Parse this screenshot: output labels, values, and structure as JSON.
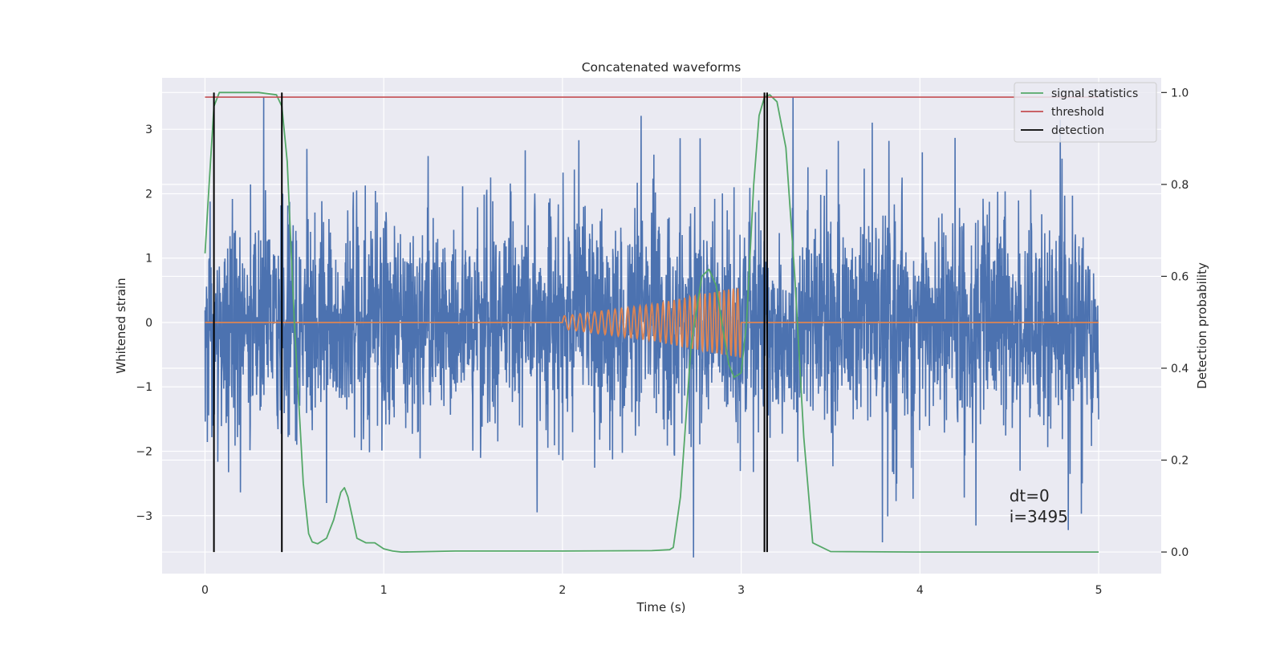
{
  "chart_data": {
    "type": "line",
    "title": "Concatenated waveforms",
    "xlabel": "Time (s)",
    "ylabel_left": "Whitened strain",
    "ylabel_right": "Detection probability",
    "xlim": [
      -0.24,
      5.35
    ],
    "ylim_left": [
      -3.9,
      3.8
    ],
    "ylim_right": [
      -0.047,
      1.032
    ],
    "xticks": [
      0,
      1,
      2,
      3,
      4,
      5
    ],
    "xtick_labels": [
      "0",
      "1",
      "2",
      "3",
      "4",
      "5"
    ],
    "yticks_left": [
      -3,
      -2,
      -1,
      0,
      1,
      2,
      3
    ],
    "ytick_labels_left": [
      "−3",
      "−2",
      "−1",
      "0",
      "1",
      "2",
      "3"
    ],
    "yticks_right": [
      0.0,
      0.2,
      0.4,
      0.6,
      0.8,
      1.0
    ],
    "ytick_labels_right": [
      "0.0",
      "0.2",
      "0.4",
      "0.6",
      "0.8",
      "1.0"
    ],
    "grid": true,
    "legend_position": "upper right",
    "colors": {
      "background": "#eaeaf2",
      "grid": "#ffffff",
      "strain": "#4c72b0",
      "template": "#dd8452",
      "signal_statistics": "#55a868",
      "threshold": "#c44e52",
      "detection": "#000000"
    },
    "series": [
      {
        "name": "strain",
        "axis": "left",
        "description": "noisy whitened strain over 0-5 s",
        "x_range": [
          0,
          5
        ],
        "y_envelope": [
          -3.65,
          3.5
        ]
      },
      {
        "name": "template",
        "axis": "left",
        "description": "chirp injection between 2 s and 3 s",
        "x": [
          0,
          2,
          2.5,
          2.8,
          3,
          3.01,
          5
        ],
        "amplitude": [
          0,
          0.1,
          0.28,
          0.45,
          0.55,
          0,
          0
        ]
      },
      {
        "name": "signal statistics",
        "axis": "right",
        "x": [
          0,
          0.02,
          0.05,
          0.08,
          0.12,
          0.2,
          0.3,
          0.4,
          0.43,
          0.46,
          0.5,
          0.55,
          0.58,
          0.6,
          0.63,
          0.68,
          0.72,
          0.76,
          0.78,
          0.8,
          0.85,
          0.9,
          0.95,
          1.0,
          1.05,
          1.1,
          1.4,
          2.0,
          2.5,
          2.6,
          2.62,
          2.66,
          2.72,
          2.78,
          2.82,
          2.86,
          2.9,
          2.93,
          2.96,
          3.0,
          3.03,
          3.07,
          3.1,
          3.13,
          3.16,
          3.2,
          3.25,
          3.3,
          3.35,
          3.4,
          3.5,
          4.0,
          4.5,
          5.0
        ],
        "y": [
          0.65,
          0.78,
          0.97,
          1.0,
          1.0,
          1.0,
          1.0,
          0.995,
          0.97,
          0.85,
          0.5,
          0.15,
          0.04,
          0.022,
          0.018,
          0.03,
          0.07,
          0.13,
          0.14,
          0.12,
          0.03,
          0.02,
          0.02,
          0.007,
          0.002,
          0.0,
          0.002,
          0.002,
          0.003,
          0.005,
          0.01,
          0.12,
          0.45,
          0.6,
          0.615,
          0.58,
          0.48,
          0.41,
          0.38,
          0.39,
          0.5,
          0.8,
          0.95,
          0.99,
          0.995,
          0.98,
          0.88,
          0.6,
          0.25,
          0.02,
          0.001,
          0.0,
          0.0,
          0.0
        ]
      },
      {
        "name": "threshold",
        "axis": "right",
        "x": [
          0,
          5
        ],
        "y": [
          0.99,
          0.99
        ]
      },
      {
        "name": "detection",
        "axis": "right",
        "type": "vlines",
        "x": [
          0.05,
          0.43,
          3.13,
          3.145
        ],
        "ymin": 0.0,
        "ymax": 1.0
      }
    ],
    "legend": [
      {
        "label": "signal statistics",
        "series": "signal statistics"
      },
      {
        "label": "threshold",
        "series": "threshold"
      },
      {
        "label": "detection",
        "series": "detection"
      }
    ],
    "annotations": [
      {
        "text": "dt=0",
        "x": 4.5,
        "y_prob": 0.11
      },
      {
        "text": "i=3495",
        "x": 4.5,
        "y_prob": 0.065
      }
    ]
  }
}
